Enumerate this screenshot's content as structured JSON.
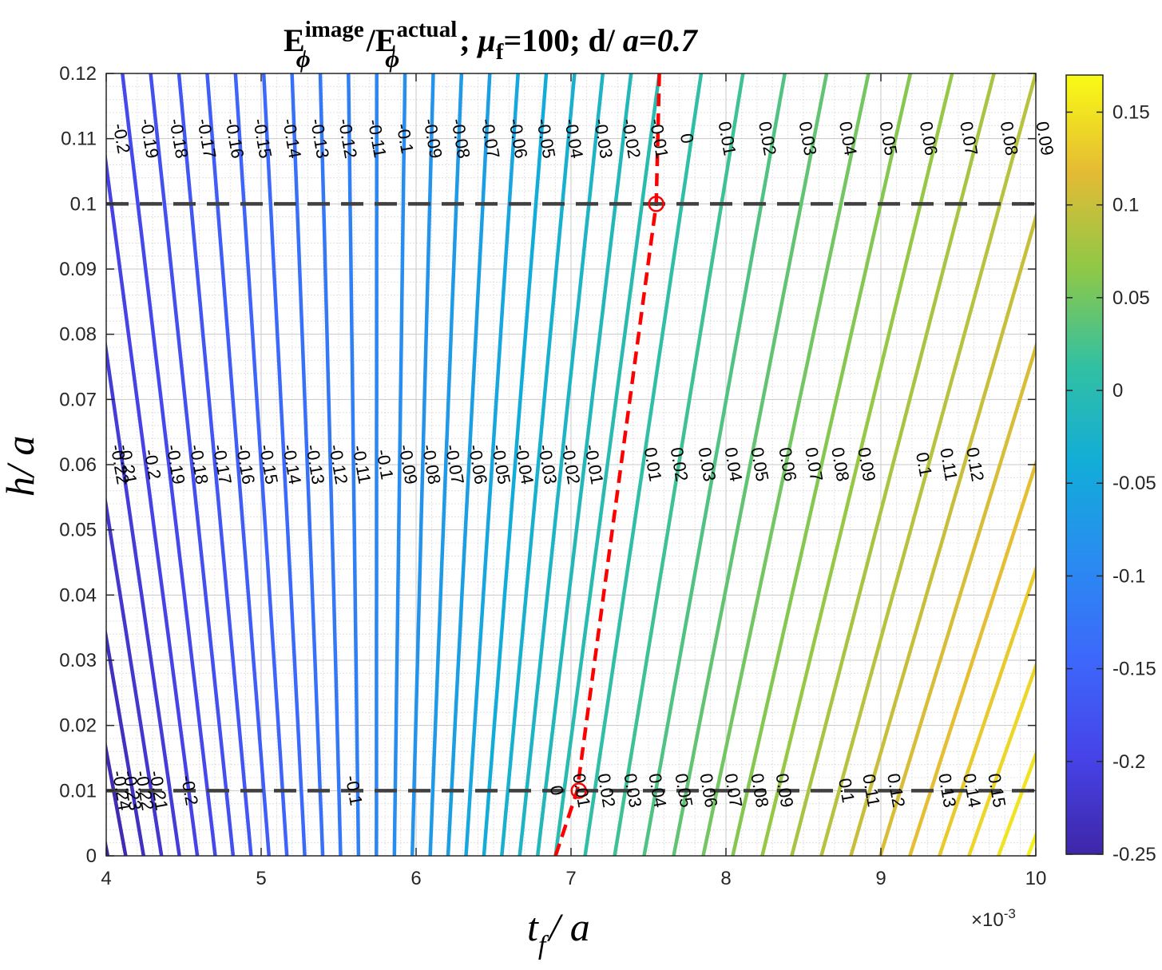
{
  "chart_data": {
    "type": "contour",
    "title": {
      "e1": "E",
      "sup1": "image",
      "sub1": "ϕ",
      "slash": "/",
      "e2": "E",
      "sup2": "actual",
      "sub2": "ϕ",
      "sep1": ";  ",
      "mu": "μ",
      "mu_sub": "f",
      "mu_val": "=100; d/ ",
      "a": "a",
      "eq": "=",
      "dval": "0.7"
    },
    "xlabel": {
      "t": "t",
      "sub": "f",
      "rest": "/  a"
    },
    "ylabel": {
      "h": "h",
      "rest": "/ a"
    },
    "x_exponent": {
      "base": "×10",
      "exp": "-3"
    },
    "xlim": [
      4,
      10
    ],
    "ylim": [
      0,
      0.12
    ],
    "xticks": [
      "4",
      "5",
      "6",
      "7",
      "8",
      "9",
      "10"
    ],
    "yticks": [
      "0",
      "0.01",
      "0.02",
      "0.03",
      "0.04",
      "0.05",
      "0.06",
      "0.07",
      "0.08",
      "0.09",
      "0.1",
      "0.11",
      "0.12"
    ],
    "grid": true,
    "minor_grid": true,
    "colormap": "parula",
    "clim": [
      -0.25,
      0.17
    ],
    "colorbar_ticks": [
      "0.15",
      "0.1",
      "0.05",
      "0",
      "-0.05",
      "-0.1",
      "-0.15",
      "-0.2",
      "-0.25"
    ],
    "contour_levels_range": [
      -0.25,
      0.17
    ],
    "contour_level_step": 0.01,
    "contour_lines": {
      "at_h_0": {
        "level_-0.25_x": 4.01,
        "level_0_x": 6.9,
        "level_0.16_x": 9.95,
        "spacing_negative": 0.1156,
        "spacing_positive": 0.1906
      },
      "at_h_0.12": {
        "level_-0.19_x": 4.11,
        "level_0_x": 7.57,
        "level_0.09_x": 10.0,
        "spacing_negative": 0.1824,
        "spacing_positive": 0.27
      }
    },
    "zero_contour_highlight": {
      "color": "#ff0000",
      "style": "dashed",
      "points": [
        [
          6.9,
          0
        ],
        [
          7.04,
          0.01
        ],
        [
          7.55,
          0.1
        ],
        [
          7.57,
          0.12
        ]
      ]
    },
    "reference_lines": [
      {
        "y": 0.01,
        "style": "dashed",
        "color": "#404040"
      },
      {
        "y": 0.1,
        "style": "dashed",
        "color": "#404040"
      }
    ],
    "markers": [
      {
        "x": 7.05,
        "y": 0.01,
        "shape": "circle",
        "color": "#ff0000"
      },
      {
        "x": 7.55,
        "y": 0.1,
        "shape": "circle",
        "color": "#ff0000"
      }
    ],
    "label_rows": [
      {
        "h": 0.11,
        "labels": [
          {
            "x": 4.09,
            "text": "-0.2"
          },
          {
            "x": 4.27,
            "text": "-0.19"
          },
          {
            "x": 4.46,
            "text": "-0.18"
          },
          {
            "x": 4.64,
            "text": "-0.17"
          },
          {
            "x": 4.82,
            "text": "-0.16"
          },
          {
            "x": 5.0,
            "text": "-0.15"
          },
          {
            "x": 5.19,
            "text": "-0.14"
          },
          {
            "x": 5.37,
            "text": "-0.13"
          },
          {
            "x": 5.55,
            "text": "-0.12"
          },
          {
            "x": 5.74,
            "text": "-0.11"
          },
          {
            "x": 5.92,
            "text": "-0.1"
          },
          {
            "x": 6.1,
            "text": "-0.09"
          },
          {
            "x": 6.28,
            "text": "-0.08"
          },
          {
            "x": 6.47,
            "text": "-0.07"
          },
          {
            "x": 6.65,
            "text": "-0.06"
          },
          {
            "x": 6.83,
            "text": "-0.05"
          },
          {
            "x": 7.01,
            "text": "-0.04"
          },
          {
            "x": 7.2,
            "text": "-0.03"
          },
          {
            "x": 7.38,
            "text": "-0.02"
          },
          {
            "x": 7.56,
            "text": "-0.01"
          },
          {
            "x": 7.74,
            "text": "0"
          },
          {
            "x": 8.0,
            "text": "0.01"
          },
          {
            "x": 8.26,
            "text": "0.02"
          },
          {
            "x": 8.52,
            "text": "0.03"
          },
          {
            "x": 8.78,
            "text": "0.04"
          },
          {
            "x": 9.04,
            "text": "0.05"
          },
          {
            "x": 9.3,
            "text": "0.06"
          },
          {
            "x": 9.56,
            "text": "0.07"
          },
          {
            "x": 9.82,
            "text": "0.08"
          },
          {
            "x": 10.05,
            "text": "0.09"
          }
        ]
      },
      {
        "h": 0.06,
        "labels": [
          {
            "x": 4.13,
            "text": "-0.21"
          },
          {
            "x": 4.08,
            "text": "-0.22"
          },
          {
            "x": 4.29,
            "text": "-0.2"
          },
          {
            "x": 4.44,
            "text": "-0.19"
          },
          {
            "x": 4.59,
            "text": "-0.18"
          },
          {
            "x": 4.74,
            "text": "-0.17"
          },
          {
            "x": 4.89,
            "text": "-0.16"
          },
          {
            "x": 5.04,
            "text": "-0.15"
          },
          {
            "x": 5.19,
            "text": "-0.14"
          },
          {
            "x": 5.34,
            "text": "-0.13"
          },
          {
            "x": 5.49,
            "text": "-0.12"
          },
          {
            "x": 5.64,
            "text": "-0.11"
          },
          {
            "x": 5.79,
            "text": "-0.1"
          },
          {
            "x": 5.94,
            "text": "-0.09"
          },
          {
            "x": 6.09,
            "text": "-0.08"
          },
          {
            "x": 6.24,
            "text": "-0.07"
          },
          {
            "x": 6.39,
            "text": "-0.06"
          },
          {
            "x": 6.54,
            "text": "-0.05"
          },
          {
            "x": 6.69,
            "text": "-0.04"
          },
          {
            "x": 6.84,
            "text": "-0.03"
          },
          {
            "x": 6.99,
            "text": "-0.02"
          },
          {
            "x": 7.14,
            "text": "-0.01"
          },
          {
            "x": 7.52,
            "text": "0.01"
          },
          {
            "x": 7.69,
            "text": "0.02"
          },
          {
            "x": 7.87,
            "text": "0.03"
          },
          {
            "x": 8.04,
            "text": "0.04"
          },
          {
            "x": 8.21,
            "text": "0.05"
          },
          {
            "x": 8.39,
            "text": "0.06"
          },
          {
            "x": 8.56,
            "text": "0.07"
          },
          {
            "x": 8.73,
            "text": "0.08"
          },
          {
            "x": 8.9,
            "text": "0.09"
          },
          {
            "x": 9.27,
            "text": "0.1"
          },
          {
            "x": 9.43,
            "text": "0.11"
          },
          {
            "x": 9.6,
            "text": "0.12"
          }
        ]
      },
      {
        "h": 0.01,
        "labels": [
          {
            "x": 4.09,
            "text": "-0.24"
          },
          {
            "x": 4.16,
            "text": "-0.23"
          },
          {
            "x": 4.24,
            "text": "-0.22"
          },
          {
            "x": 4.33,
            "text": "-0.21"
          },
          {
            "x": 4.53,
            "text": "-0.2"
          },
          {
            "x": 5.59,
            "text": "-0.1"
          },
          {
            "x": 6.9,
            "text": "0"
          },
          {
            "x": 7.06,
            "text": "0.01"
          },
          {
            "x": 7.22,
            "text": "0.02"
          },
          {
            "x": 7.39,
            "text": "0.03"
          },
          {
            "x": 7.55,
            "text": "0.04"
          },
          {
            "x": 7.72,
            "text": "0.05"
          },
          {
            "x": 7.88,
            "text": "0.06"
          },
          {
            "x": 8.04,
            "text": "0.07"
          },
          {
            "x": 8.21,
            "text": "0.08"
          },
          {
            "x": 8.37,
            "text": "0.09"
          },
          {
            "x": 8.77,
            "text": "0.1"
          },
          {
            "x": 8.93,
            "text": "0.11"
          },
          {
            "x": 9.09,
            "text": "0.12"
          },
          {
            "x": 9.42,
            "text": "0.13"
          },
          {
            "x": 9.58,
            "text": "0.14"
          },
          {
            "x": 9.74,
            "text": "0.15"
          }
        ]
      }
    ]
  }
}
